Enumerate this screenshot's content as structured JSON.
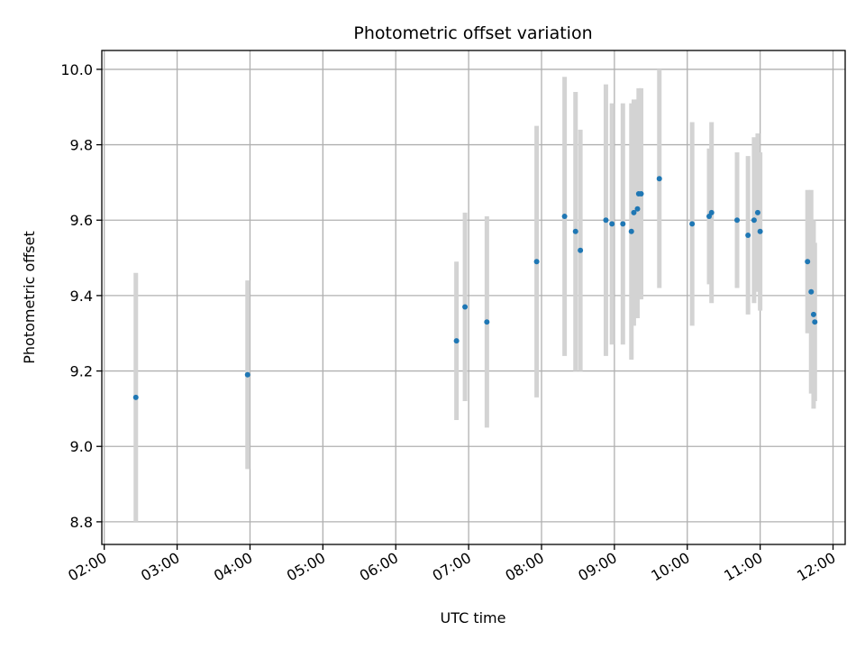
{
  "chart_data": {
    "type": "scatter",
    "title": "Photometric offset variation",
    "xlabel": "UTC time",
    "ylabel": "Photometric offset",
    "grid": true,
    "xlim": [
      "01:58",
      "12:10"
    ],
    "ylim": [
      8.74,
      10.05
    ],
    "x_ticks": [
      "02:00",
      "03:00",
      "04:00",
      "05:00",
      "06:00",
      "07:00",
      "08:00",
      "09:00",
      "10:00",
      "11:00",
      "12:00"
    ],
    "y_ticks": [
      "8.8",
      "9.0",
      "9.2",
      "9.4",
      "9.6",
      "9.8",
      "10.0"
    ],
    "colors": {
      "point": "#1f77b4",
      "errorbar": "#d3d3d3",
      "grid": "#b0b0b0"
    },
    "series": [
      {
        "x": [
          "02:26",
          "03:58",
          "06:50",
          "06:57",
          "07:15",
          "07:56",
          "08:19",
          "08:28",
          "08:32",
          "08:53",
          "08:58",
          "09:07",
          "09:14",
          "09:16",
          "09:19",
          "09:20",
          "09:22",
          "09:37",
          "10:04",
          "10:18",
          "10:20",
          "10:41",
          "10:50",
          "10:55",
          "10:58",
          "11:00",
          "11:39",
          "11:42",
          "11:44",
          "11:45"
        ],
        "y": [
          9.13,
          9.19,
          9.28,
          9.37,
          9.33,
          9.49,
          9.61,
          9.57,
          9.52,
          9.6,
          9.59,
          9.59,
          9.57,
          9.62,
          9.63,
          9.67,
          9.67,
          9.71,
          9.59,
          9.61,
          9.62,
          9.6,
          9.56,
          9.6,
          9.62,
          9.57,
          9.49,
          9.41,
          9.35,
          9.33
        ],
        "err": [
          0.33,
          0.25,
          0.21,
          0.25,
          0.28,
          0.36,
          0.37,
          0.37,
          0.32,
          0.36,
          0.32,
          0.32,
          0.34,
          0.3,
          0.29,
          0.28,
          0.28,
          0.29,
          0.27,
          0.18,
          0.24,
          0.18,
          0.21,
          0.22,
          0.21,
          0.21,
          0.19,
          0.27,
          0.25,
          0.21
        ]
      }
    ]
  }
}
